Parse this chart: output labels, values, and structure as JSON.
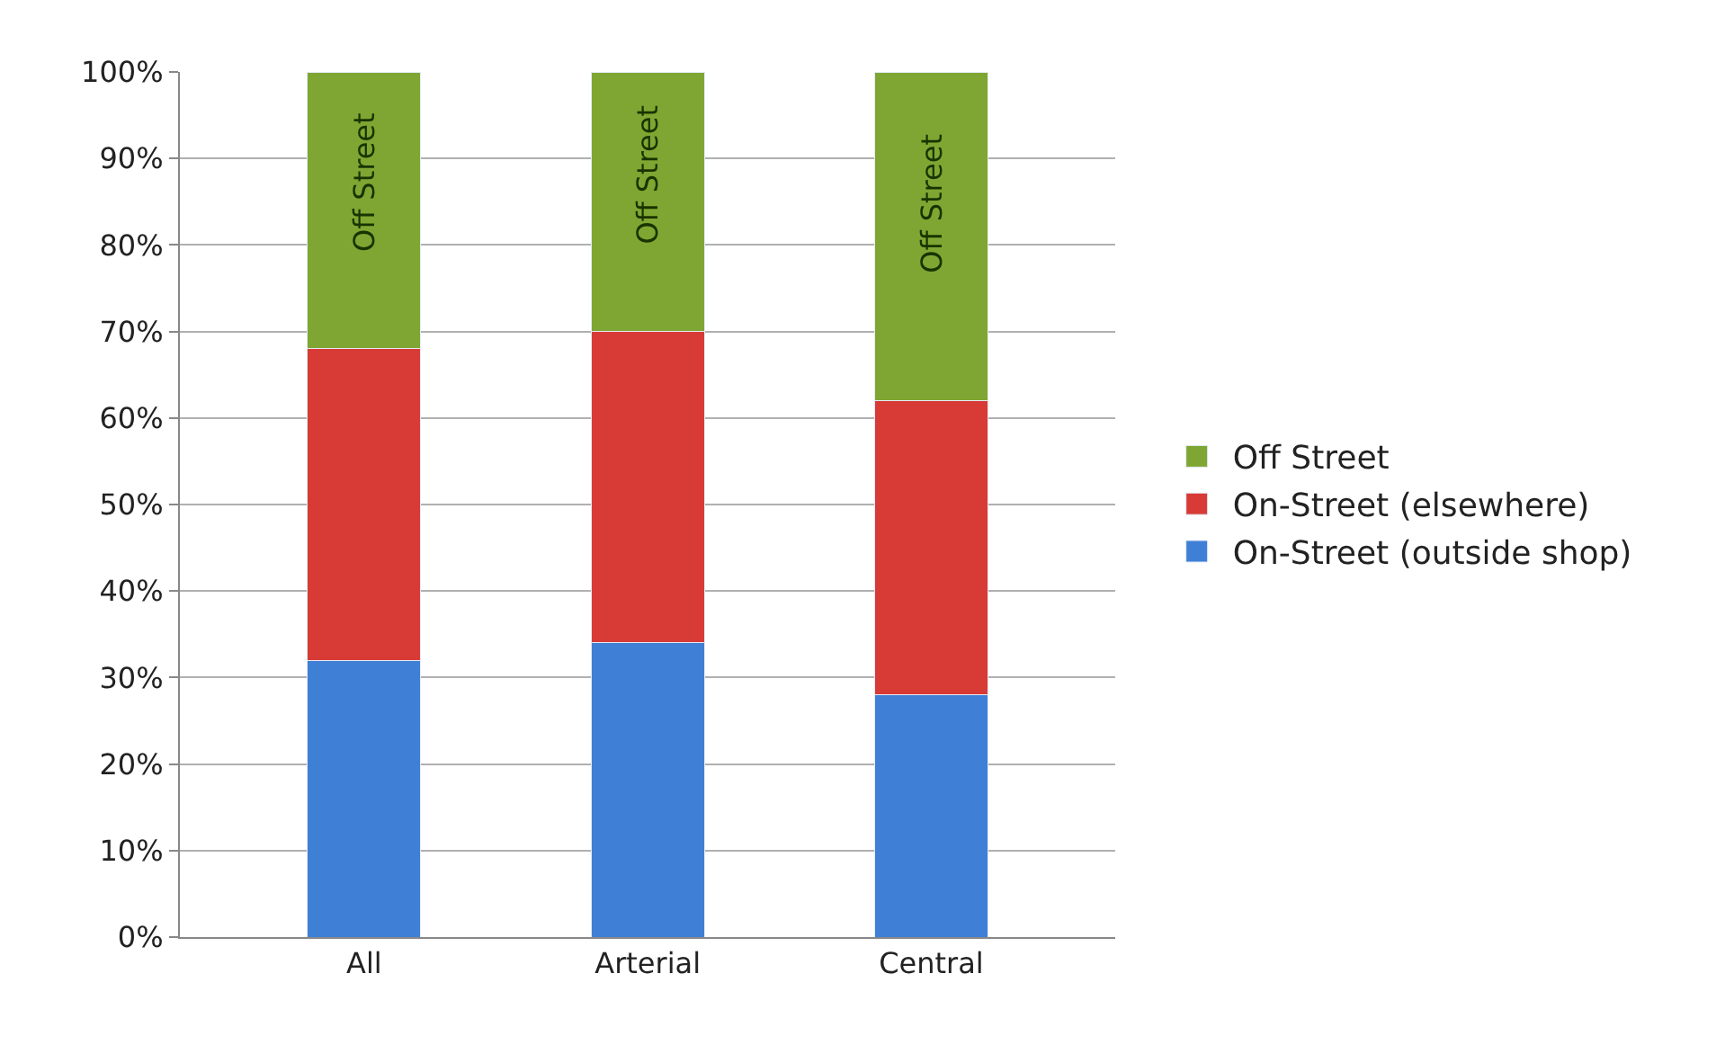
{
  "chart_data": {
    "type": "bar",
    "stacked": true,
    "categories": [
      "All",
      "Arterial",
      "Central"
    ],
    "series": [
      {
        "name": "On-Street (outside shop)",
        "color": "#3f7fd6",
        "values": [
          32,
          34,
          28
        ]
      },
      {
        "name": "On-Street (elsewhere)",
        "color": "#d83a36",
        "values": [
          36,
          36,
          34
        ]
      },
      {
        "name": "Off Street",
        "color": "#7fa632",
        "values": [
          32,
          30,
          38
        ]
      }
    ],
    "ylim": [
      0,
      100
    ],
    "yticks": [
      {
        "value": 0,
        "label": "0%"
      },
      {
        "value": 10,
        "label": "10%"
      },
      {
        "value": 20,
        "label": "20%"
      },
      {
        "value": 30,
        "label": "30%"
      },
      {
        "value": 40,
        "label": "40%"
      },
      {
        "value": 50,
        "label": "50%"
      },
      {
        "value": 60,
        "label": "60%"
      },
      {
        "value": 70,
        "label": "70%"
      },
      {
        "value": 80,
        "label": "80%"
      },
      {
        "value": 90,
        "label": "90%"
      },
      {
        "value": 100,
        "label": "100%"
      }
    ],
    "grid": "y",
    "legend": "right",
    "annotations": [
      "Off Street",
      "Off Street",
      "Off Street"
    ]
  }
}
